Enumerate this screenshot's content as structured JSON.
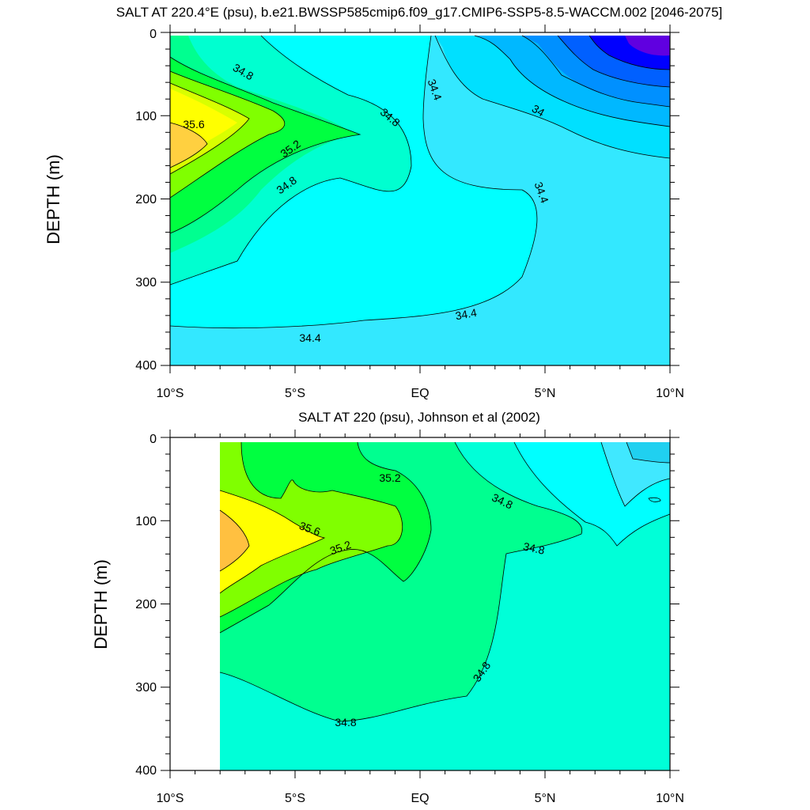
{
  "chart_data": [
    {
      "type": "contour",
      "title": "SALT AT 220.4°E (psu), b.e21.BWSSP585cmip6.f09_g17.CMIP6-SSP5-8.5-WACCM.002 [2046-2075]",
      "ylabel": "DEPTH (m)",
      "xlim": [
        -10,
        10
      ],
      "ylim": [
        400,
        0
      ],
      "x_ticks": [
        "10°S",
        "5°S",
        "EQ",
        "5°N",
        "10°N"
      ],
      "y_ticks": [
        "0",
        "100",
        "200",
        "300",
        "400"
      ],
      "contour_labels": [
        "34.8",
        "35.6",
        "35.2",
        "34.8",
        "34.8",
        "34.4",
        "34",
        "34.4",
        "34.4",
        "34.4"
      ],
      "fields": {
        "salinity_psu_min": 33.6,
        "salinity_psu_max": 35.8,
        "max_location": {
          "lat": -9.5,
          "depth_m": 140
        },
        "min_location": {
          "lat": 9.5,
          "depth_m": 10
        }
      }
    },
    {
      "type": "contour",
      "title": "SALT AT 220 (psu), Johnson et al (2002)",
      "ylabel": "DEPTH (m)",
      "xlim": [
        -10,
        10
      ],
      "ylim": [
        400,
        0
      ],
      "x_ticks": [
        "10°S",
        "5°S",
        "EQ",
        "5°N",
        "10°N"
      ],
      "y_ticks": [
        "0",
        "100",
        "200",
        "300",
        "400"
      ],
      "contour_labels": [
        "35.2",
        "34.8",
        "35.6",
        "35.2",
        "34.8",
        "34.8",
        "34.8"
      ],
      "fields": {
        "data_start_lat": -8,
        "salinity_psu_min": 34.4,
        "salinity_psu_max": 35.8,
        "max_location": {
          "lat": -7.5,
          "depth_m": 125
        },
        "min_location": {
          "lat": 9.5,
          "depth_m": 15
        }
      }
    }
  ]
}
